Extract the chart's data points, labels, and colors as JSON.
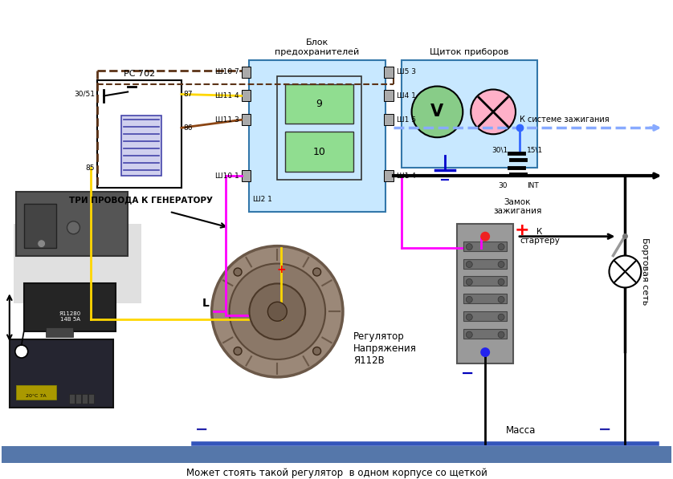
{
  "bg_color": "#ffffff",
  "fig_width": 8.38,
  "fig_height": 5.97,
  "bottom_text": "Может стоять такой регулятор  в одном корпусе со щеткой",
  "tri_provoda": "ТРИ ПРОВОДА К ГЕНЕРАТОРУ",
  "regulator_text": "Регулятор\nНапряжения\nЯ112В",
  "massa_text": "Масса",
  "k_starteru": "К\nстартеру",
  "k_sisteme": "К системе зажигания",
  "zamok": "Замок\nзажигания",
  "int_text": "INT",
  "bortovaya": "Бортовая сеть",
  "blok_text": "Блок\nпредохранителей",
  "shchitok_text": "Щиток приборов",
  "rc702_text": "РС 702"
}
